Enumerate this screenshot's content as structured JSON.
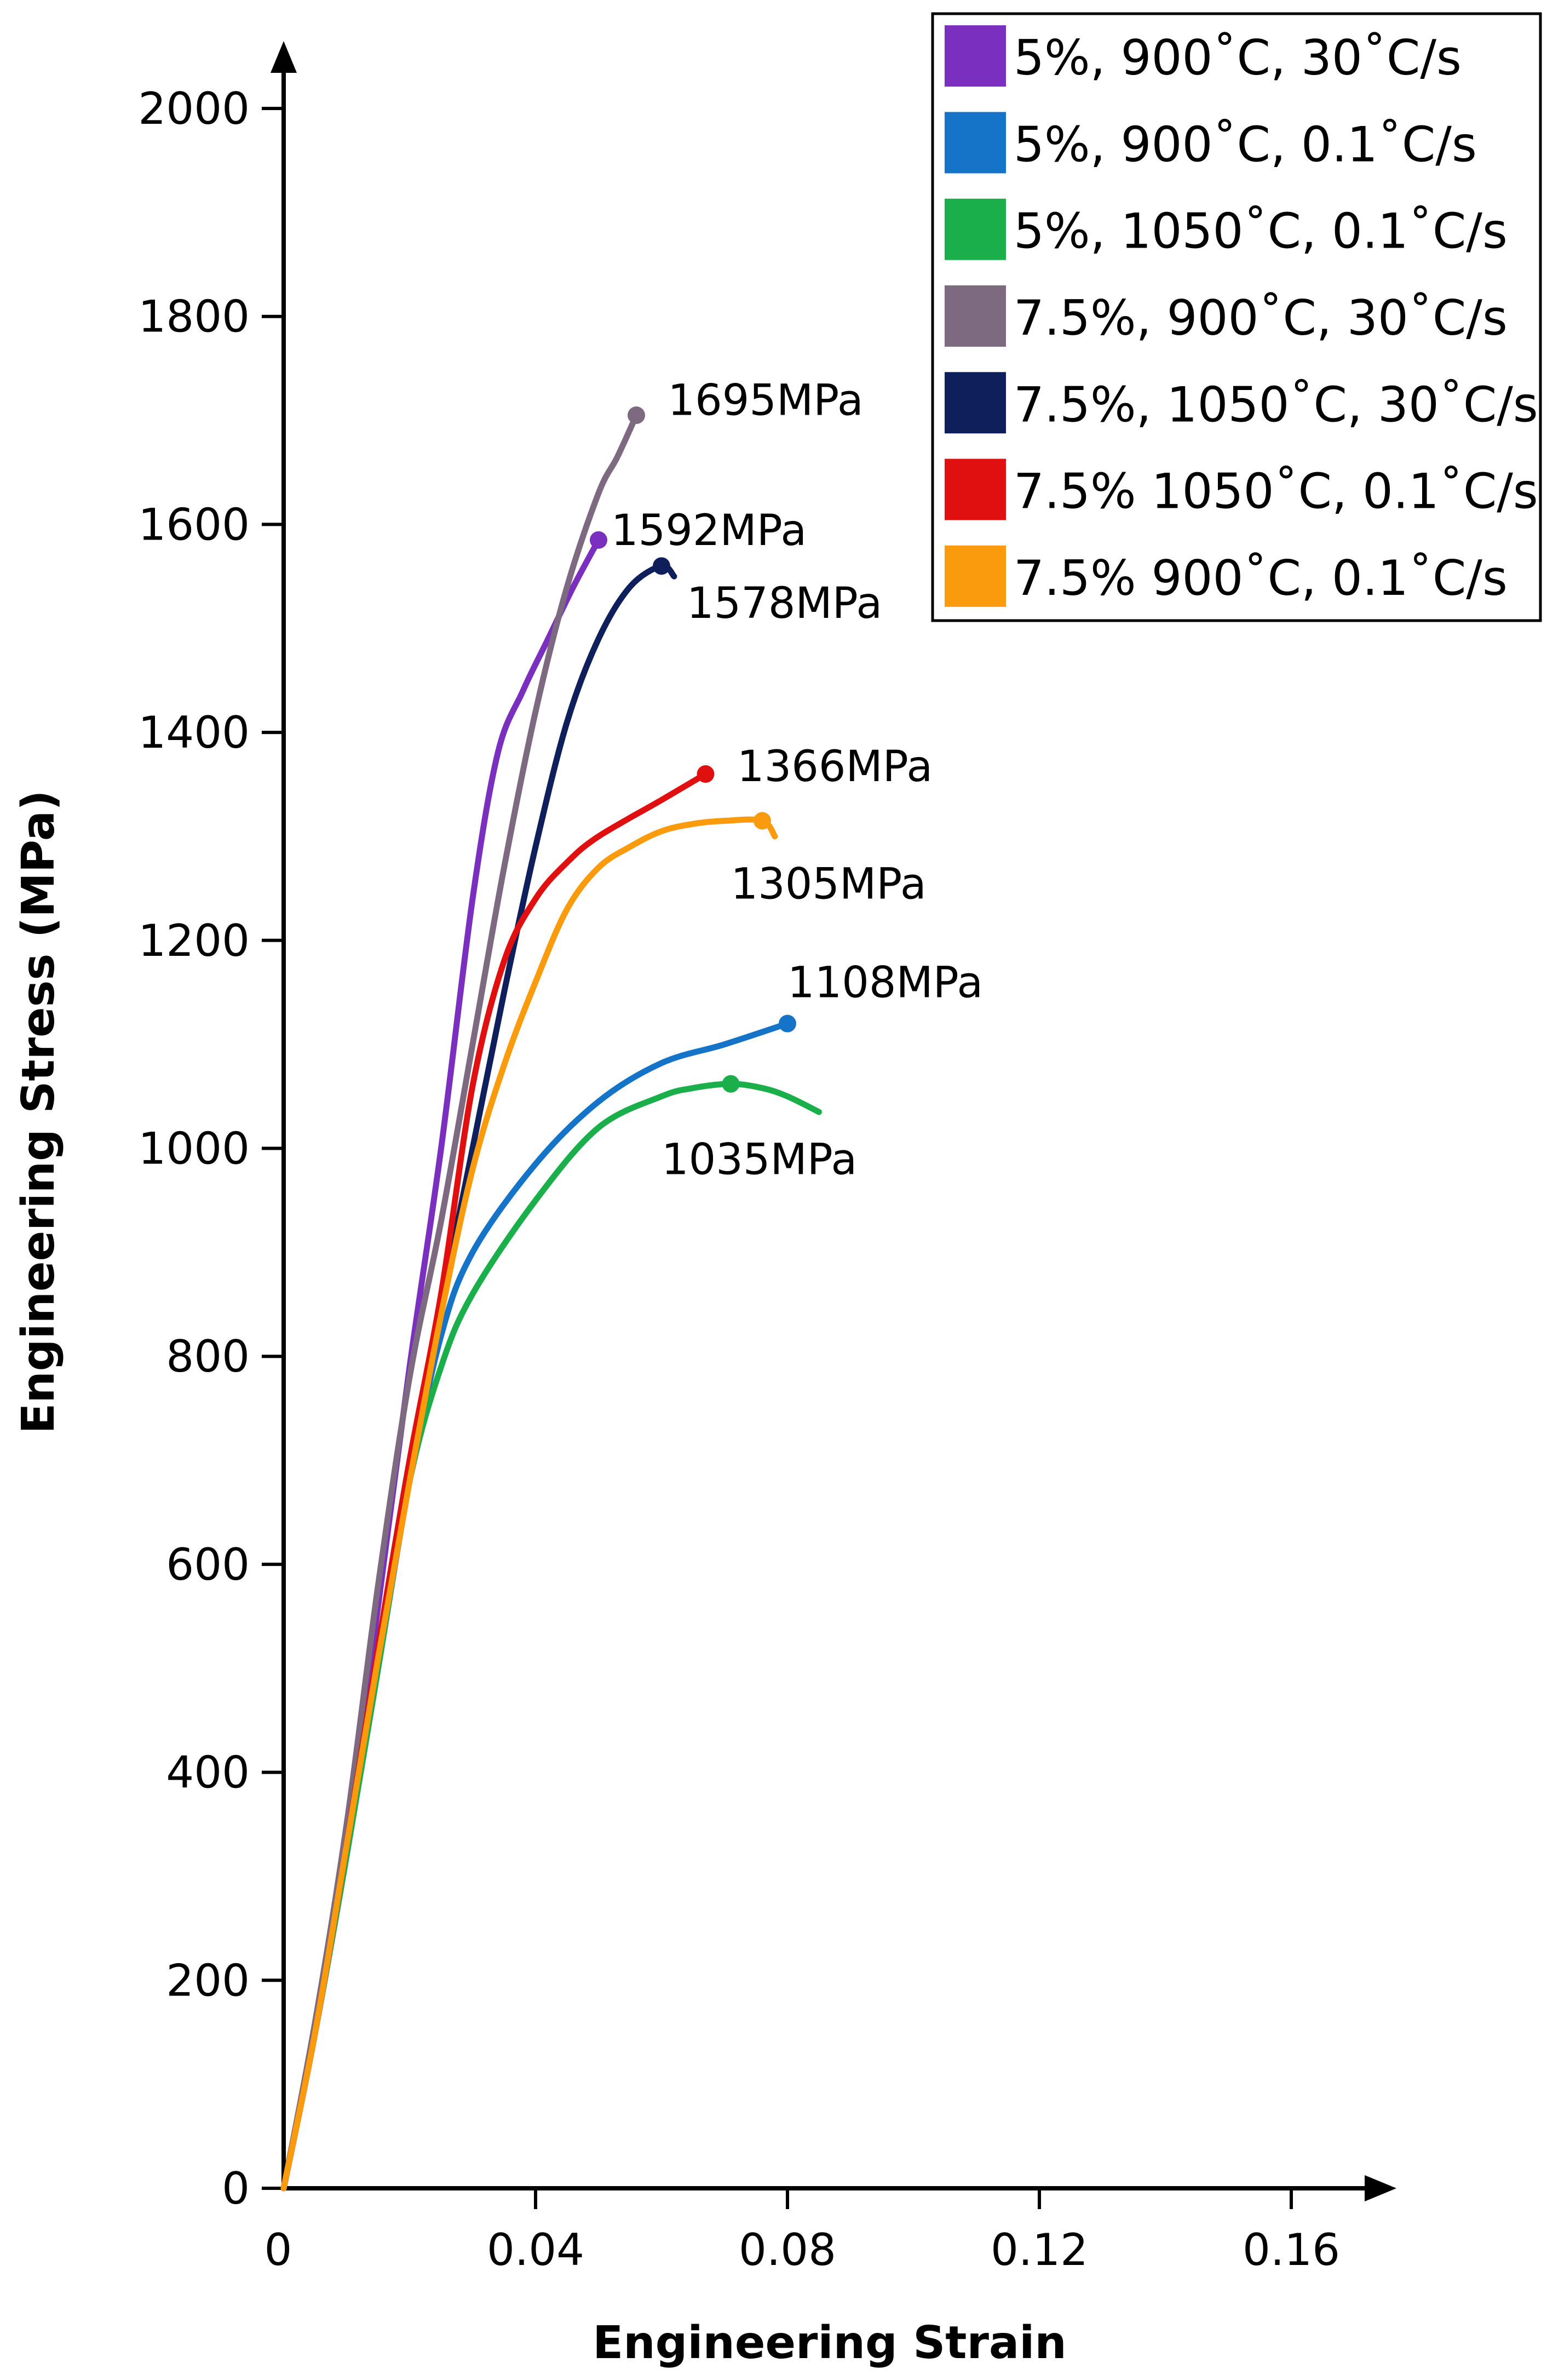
{
  "chart_data": {
    "type": "line",
    "title": "",
    "xlabel": "Engineering Strain",
    "ylabel": "Engineering Stress (MPa)",
    "xlim": [
      0,
      0.17
    ],
    "ylim": [
      0,
      2000
    ],
    "xticks": [
      0,
      0.04,
      0.08,
      0.12,
      0.16
    ],
    "xtick_labels": [
      "0",
      "0.04",
      "0.08",
      "0.12",
      "0.16"
    ],
    "yticks": [
      0,
      200,
      400,
      600,
      800,
      1000,
      1200,
      1400,
      1600,
      1800,
      2000
    ],
    "ytick_labels": [
      "0",
      "200",
      "400",
      "600",
      "800",
      "1000",
      "1200",
      "1400",
      "1600",
      "1800",
      "2000"
    ],
    "grid": false,
    "legend_position": "top-right",
    "series": [
      {
        "name": "5%, 900˚C, 30˚C/s",
        "color": "#7b2fbe",
        "points": [
          [
            0,
            0
          ],
          [
            0.005,
            150
          ],
          [
            0.01,
            330
          ],
          [
            0.015,
            560
          ],
          [
            0.02,
            790
          ],
          [
            0.025,
            1000
          ],
          [
            0.03,
            1240
          ],
          [
            0.034,
            1380
          ],
          [
            0.038,
            1440
          ],
          [
            0.042,
            1490
          ],
          [
            0.046,
            1540
          ],
          [
            0.05,
            1585
          ]
        ],
        "end_marker": [
          0.05,
          1585
        ]
      },
      {
        "name": "5%, 900˚C, 0.1˚C/s",
        "color": "#1574c8",
        "points": [
          [
            0,
            0
          ],
          [
            0.005,
            150
          ],
          [
            0.01,
            320
          ],
          [
            0.015,
            500
          ],
          [
            0.02,
            680
          ],
          [
            0.025,
            820
          ],
          [
            0.03,
            900
          ],
          [
            0.04,
            985
          ],
          [
            0.05,
            1045
          ],
          [
            0.06,
            1082
          ],
          [
            0.07,
            1100
          ],
          [
            0.08,
            1120
          ]
        ],
        "end_marker": [
          0.08,
          1120
        ]
      },
      {
        "name": "5%, 1050˚C, 0.1˚C/s",
        "color": "#1aaf4a",
        "points": [
          [
            0,
            0
          ],
          [
            0.005,
            150
          ],
          [
            0.01,
            320
          ],
          [
            0.015,
            500
          ],
          [
            0.02,
            680
          ],
          [
            0.025,
            790
          ],
          [
            0.03,
            860
          ],
          [
            0.04,
            950
          ],
          [
            0.05,
            1020
          ],
          [
            0.06,
            1050
          ],
          [
            0.065,
            1058
          ],
          [
            0.071,
            1062
          ],
          [
            0.076,
            1058
          ],
          [
            0.08,
            1050
          ],
          [
            0.085,
            1035
          ]
        ],
        "end_marker": [
          0.071,
          1062
        ]
      },
      {
        "name": "7.5%, 900˚C, 30˚C/s",
        "color": "#7d6a80",
        "points": [
          [
            0,
            0
          ],
          [
            0.005,
            160
          ],
          [
            0.01,
            350
          ],
          [
            0.015,
            580
          ],
          [
            0.02,
            780
          ],
          [
            0.025,
            930
          ],
          [
            0.03,
            1100
          ],
          [
            0.035,
            1270
          ],
          [
            0.04,
            1420
          ],
          [
            0.045,
            1540
          ],
          [
            0.05,
            1630
          ],
          [
            0.053,
            1665
          ],
          [
            0.056,
            1705
          ]
        ],
        "end_marker": [
          0.056,
          1705
        ]
      },
      {
        "name": "7.5%, 1050˚C, 30˚C/s",
        "color": "#0f1f5c",
        "points": [
          [
            0,
            0
          ],
          [
            0.005,
            150
          ],
          [
            0.01,
            330
          ],
          [
            0.015,
            520
          ],
          [
            0.02,
            700
          ],
          [
            0.025,
            850
          ],
          [
            0.03,
            1000
          ],
          [
            0.035,
            1150
          ],
          [
            0.04,
            1290
          ],
          [
            0.045,
            1410
          ],
          [
            0.05,
            1490
          ],
          [
            0.055,
            1540
          ],
          [
            0.06,
            1560
          ],
          [
            0.062,
            1550
          ]
        ],
        "end_marker": [
          0.06,
          1560
        ]
      },
      {
        "name": "7.5% 1050˚C, 0.1˚C/s",
        "color": "#e01010",
        "points": [
          [
            0,
            0
          ],
          [
            0.005,
            150
          ],
          [
            0.01,
            330
          ],
          [
            0.015,
            520
          ],
          [
            0.02,
            700
          ],
          [
            0.025,
            860
          ],
          [
            0.03,
            1060
          ],
          [
            0.035,
            1180
          ],
          [
            0.04,
            1240
          ],
          [
            0.045,
            1275
          ],
          [
            0.05,
            1300
          ],
          [
            0.06,
            1335
          ],
          [
            0.067,
            1360
          ]
        ],
        "end_marker": [
          0.067,
          1360
        ]
      },
      {
        "name": "7.5% 900˚C, 0.1˚C/s",
        "color": "#f99b0c",
        "points": [
          [
            0,
            0
          ],
          [
            0.005,
            150
          ],
          [
            0.01,
            330
          ],
          [
            0.015,
            510
          ],
          [
            0.02,
            680
          ],
          [
            0.025,
            840
          ],
          [
            0.03,
            980
          ],
          [
            0.035,
            1080
          ],
          [
            0.04,
            1160
          ],
          [
            0.045,
            1230
          ],
          [
            0.05,
            1270
          ],
          [
            0.055,
            1290
          ],
          [
            0.06,
            1305
          ],
          [
            0.065,
            1312
          ],
          [
            0.07,
            1315
          ],
          [
            0.076,
            1315
          ],
          [
            0.078,
            1300
          ]
        ],
        "end_marker": [
          0.076,
          1315
        ]
      }
    ],
    "annotations": [
      {
        "text": "1695MPa",
        "x": 0.061,
        "y": 1720
      },
      {
        "text": "1592MPa",
        "x": 0.052,
        "y": 1595
      },
      {
        "text": "1578MPa",
        "x": 0.064,
        "y": 1525
      },
      {
        "text": "1366MPa",
        "x": 0.072,
        "y": 1368
      },
      {
        "text": "1305MPa",
        "x": 0.071,
        "y": 1255
      },
      {
        "text": "1108MPa",
        "x": 0.08,
        "y": 1160
      },
      {
        "text": "1035MPa",
        "x": 0.06,
        "y": 990
      }
    ]
  }
}
